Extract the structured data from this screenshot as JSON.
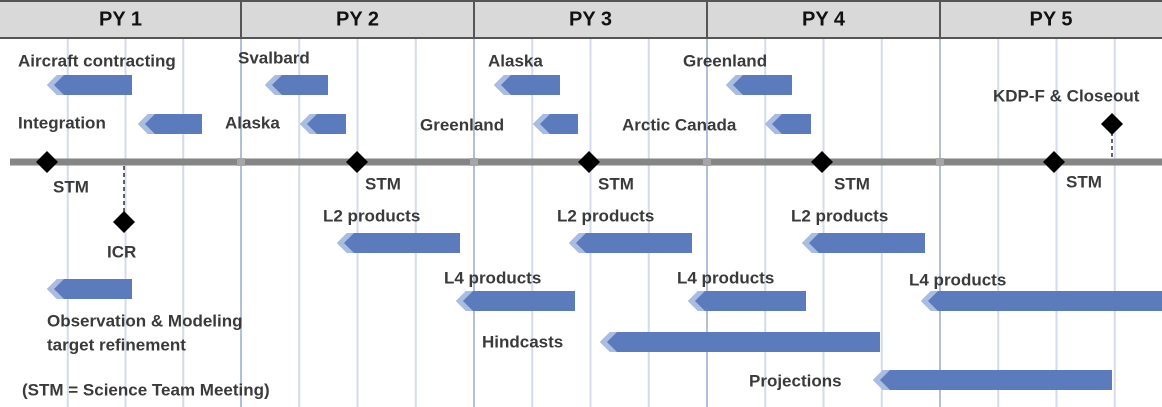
{
  "header": {
    "years": [
      "PY 1",
      "PY 2",
      "PY 3",
      "PY 4",
      "PY 5"
    ]
  },
  "labels": [
    "Aircraft contracting",
    "Integration",
    "Svalbard",
    "Alaska",
    "Alaska",
    "Greenland",
    "Greenland",
    "Arctic Canada",
    "KDP-F & Closeout",
    "STM",
    "STM",
    "STM",
    "STM",
    "STM",
    "ICR",
    "L2 products",
    "L2 products",
    "L2 products",
    "L4 products",
    "L4 products",
    "L4 products",
    "Observation & Modeling",
    "target refinement",
    "Hindcasts",
    "Projections"
  ],
  "footnote": "(STM = Science Team Meeting)"
}
